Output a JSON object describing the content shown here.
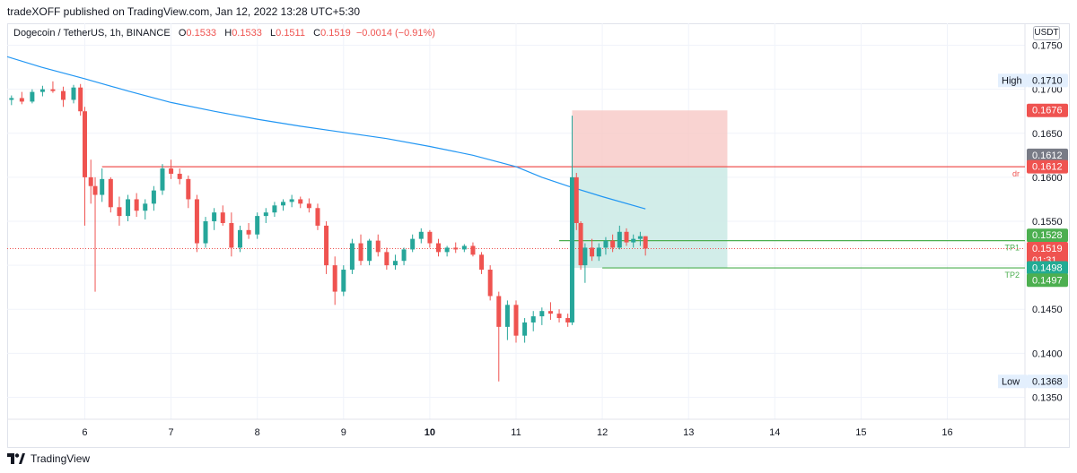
{
  "publish_line": "tradeXOFF published on TradingView.com, Jan 12, 2022 13:28 UTC+5:30",
  "legend": {
    "symbol": "Dogecoin / TetherUS, 1h, BINANCE",
    "open_label": "O",
    "open": "0.1533",
    "high_label": "H",
    "high": "0.1533",
    "low_label": "L",
    "low": "0.1511",
    "close_label": "C",
    "close": "0.1519",
    "change": "−0.0014 (−0.91%)"
  },
  "price_unit": "USDT",
  "footer": {
    "brand": "TradingView"
  },
  "colors": {
    "up": "#26a69a",
    "down": "#ef5350",
    "ma": "#2196f3",
    "resistance": "#ef5350",
    "tp": "#4caf50",
    "stop_zone": "#f7c8c6",
    "target_zone": "#cdebe7"
  },
  "chart_data": {
    "type": "candlestick",
    "x_ticks": [
      "6",
      "7",
      "8",
      "9",
      "10",
      "11",
      "12",
      "13",
      "14",
      "15",
      "16"
    ],
    "y_ticks": [
      "0.1350",
      "0.1400",
      "0.1450",
      "0.1500",
      "0.1550",
      "0.1600",
      "0.1650",
      "0.1700",
      "0.1750"
    ],
    "ylim": [
      0.1325,
      0.1775
    ],
    "xlim": [
      5.1,
      16.9
    ],
    "ohlc": [
      [
        5.15,
        0.1688,
        0.1693,
        0.1682,
        0.169
      ],
      [
        5.27,
        0.169,
        0.1697,
        0.1683,
        0.1686
      ],
      [
        5.39,
        0.1686,
        0.17,
        0.1684,
        0.1697
      ],
      [
        5.51,
        0.1697,
        0.1704,
        0.1692,
        0.17
      ],
      [
        5.63,
        0.17,
        0.1709,
        0.1696,
        0.1698
      ],
      [
        5.75,
        0.1698,
        0.1703,
        0.168,
        0.1688
      ],
      [
        5.87,
        0.1688,
        0.1705,
        0.1684,
        0.1702
      ],
      [
        5.95,
        0.1702,
        0.1706,
        0.167,
        0.1675
      ],
      [
        6.0,
        0.1675,
        0.168,
        0.1545,
        0.16
      ],
      [
        6.07,
        0.16,
        0.162,
        0.157,
        0.159
      ],
      [
        6.12,
        0.159,
        0.16,
        0.147,
        0.158
      ],
      [
        6.2,
        0.158,
        0.161,
        0.1572,
        0.1598
      ],
      [
        6.3,
        0.1598,
        0.16,
        0.156,
        0.1566
      ],
      [
        6.4,
        0.1566,
        0.1578,
        0.1545,
        0.1556
      ],
      [
        6.5,
        0.1556,
        0.158,
        0.155,
        0.1575
      ],
      [
        6.6,
        0.1575,
        0.1582,
        0.1555,
        0.1562
      ],
      [
        6.7,
        0.1562,
        0.1575,
        0.1552,
        0.157
      ],
      [
        6.8,
        0.157,
        0.159,
        0.1562,
        0.1585
      ],
      [
        6.9,
        0.1585,
        0.1615,
        0.158,
        0.161
      ],
      [
        7.0,
        0.161,
        0.162,
        0.1598,
        0.1604
      ],
      [
        7.1,
        0.1604,
        0.161,
        0.1592,
        0.1598
      ],
      [
        7.2,
        0.1598,
        0.1602,
        0.1565,
        0.1575
      ],
      [
        7.3,
        0.1575,
        0.158,
        0.1515,
        0.1525
      ],
      [
        7.4,
        0.1525,
        0.1555,
        0.152,
        0.155
      ],
      [
        7.5,
        0.155,
        0.1565,
        0.154,
        0.156
      ],
      [
        7.6,
        0.156,
        0.1568,
        0.1545,
        0.1548
      ],
      [
        7.7,
        0.1548,
        0.156,
        0.151,
        0.152
      ],
      [
        7.8,
        0.152,
        0.1545,
        0.1515,
        0.154
      ],
      [
        7.9,
        0.154,
        0.1548,
        0.153,
        0.1535
      ],
      [
        8.0,
        0.1535,
        0.156,
        0.153,
        0.1556
      ],
      [
        8.1,
        0.1556,
        0.1565,
        0.1548,
        0.156
      ],
      [
        8.2,
        0.156,
        0.1572,
        0.1555,
        0.1568
      ],
      [
        8.3,
        0.1568,
        0.1575,
        0.1562,
        0.1572
      ],
      [
        8.4,
        0.1572,
        0.158,
        0.1566,
        0.1575
      ],
      [
        8.5,
        0.1575,
        0.1578,
        0.1565,
        0.157
      ],
      [
        8.6,
        0.157,
        0.1576,
        0.156,
        0.1565
      ],
      [
        8.7,
        0.1565,
        0.157,
        0.154,
        0.1545
      ],
      [
        8.8,
        0.1545,
        0.155,
        0.149,
        0.15
      ],
      [
        8.9,
        0.15,
        0.151,
        0.1455,
        0.147
      ],
      [
        9.0,
        0.147,
        0.15,
        0.1465,
        0.1495
      ],
      [
        9.1,
        0.1495,
        0.153,
        0.149,
        0.1525
      ],
      [
        9.2,
        0.1525,
        0.1535,
        0.15,
        0.1505
      ],
      [
        9.3,
        0.1505,
        0.153,
        0.15,
        0.1528
      ],
      [
        9.4,
        0.1528,
        0.1535,
        0.151,
        0.1515
      ],
      [
        9.5,
        0.1515,
        0.152,
        0.1495,
        0.15
      ],
      [
        9.6,
        0.15,
        0.1512,
        0.1495,
        0.1505
      ],
      [
        9.7,
        0.1505,
        0.152,
        0.15,
        0.1518
      ],
      [
        9.8,
        0.1518,
        0.1535,
        0.1515,
        0.153
      ],
      [
        9.9,
        0.153,
        0.1542,
        0.1525,
        0.1538
      ],
      [
        10.0,
        0.1538,
        0.154,
        0.152,
        0.1525
      ],
      [
        10.1,
        0.1525,
        0.153,
        0.151,
        0.1515
      ],
      [
        10.2,
        0.1515,
        0.1522,
        0.151,
        0.152
      ],
      [
        10.3,
        0.152,
        0.1526,
        0.1514,
        0.1518
      ],
      [
        10.4,
        0.1518,
        0.1524,
        0.1515,
        0.1522
      ],
      [
        10.5,
        0.1522,
        0.1526,
        0.151,
        0.1512
      ],
      [
        10.6,
        0.1512,
        0.1515,
        0.149,
        0.1495
      ],
      [
        10.7,
        0.1495,
        0.15,
        0.146,
        0.1465
      ],
      [
        10.8,
        0.1465,
        0.147,
        0.1368,
        0.143
      ],
      [
        10.9,
        0.143,
        0.146,
        0.1415,
        0.1455
      ],
      [
        11.0,
        0.1455,
        0.146,
        0.1412,
        0.142
      ],
      [
        11.1,
        0.142,
        0.144,
        0.1412,
        0.1435
      ],
      [
        11.2,
        0.1435,
        0.1448,
        0.1425,
        0.1442
      ],
      [
        11.3,
        0.1442,
        0.1452,
        0.1432,
        0.1448
      ],
      [
        11.4,
        0.1448,
        0.1458,
        0.1438,
        0.1445
      ],
      [
        11.5,
        0.1445,
        0.145,
        0.1435,
        0.144
      ],
      [
        11.6,
        0.144,
        0.1445,
        0.143,
        0.1435
      ],
      [
        11.65,
        0.1435,
        0.167,
        0.1432,
        0.16
      ],
      [
        11.7,
        0.16,
        0.1605,
        0.154,
        0.1548
      ],
      [
        11.75,
        0.1548,
        0.155,
        0.1495,
        0.15
      ],
      [
        11.8,
        0.15,
        0.1525,
        0.148,
        0.152
      ],
      [
        11.88,
        0.152,
        0.153,
        0.1505,
        0.151
      ],
      [
        11.96,
        0.151,
        0.1525,
        0.1505,
        0.152
      ],
      [
        12.04,
        0.152,
        0.1532,
        0.1512,
        0.1528
      ],
      [
        12.12,
        0.1528,
        0.1535,
        0.1515,
        0.152
      ],
      [
        12.2,
        0.152,
        0.1545,
        0.1518,
        0.1538
      ],
      [
        12.28,
        0.1538,
        0.1542,
        0.1522,
        0.1526
      ],
      [
        12.36,
        0.1526,
        0.1535,
        0.152,
        0.153
      ],
      [
        12.44,
        0.153,
        0.1538,
        0.1522,
        0.1533
      ],
      [
        12.5,
        0.1533,
        0.1533,
        0.1511,
        0.1519
      ]
    ],
    "moving_average": [
      [
        5.1,
        0.1737
      ],
      [
        5.5,
        0.1725
      ],
      [
        6.0,
        0.1712
      ],
      [
        6.5,
        0.1698
      ],
      [
        7.0,
        0.1685
      ],
      [
        7.5,
        0.1675
      ],
      [
        8.0,
        0.1666
      ],
      [
        8.5,
        0.1658
      ],
      [
        9.0,
        0.1651
      ],
      [
        9.5,
        0.1644
      ],
      [
        10.0,
        0.1635
      ],
      [
        10.5,
        0.1625
      ],
      [
        11.0,
        0.1612
      ],
      [
        11.3,
        0.16
      ],
      [
        11.6,
        0.159
      ],
      [
        12.0,
        0.1578
      ],
      [
        12.5,
        0.1564
      ]
    ],
    "resistance": {
      "price": 0.1612,
      "label": "dr",
      "x_start": 6.2
    },
    "tp1": {
      "price": 0.1528,
      "label": "TP1",
      "x_start": 11.5
    },
    "tp2": {
      "price": 0.1497,
      "label": "TP2",
      "x_start": 12.0
    },
    "position": {
      "x_start": 11.65,
      "x_end": 13.45,
      "stop": 0.1676,
      "entry": 0.1612,
      "target": 0.1497
    },
    "last_price": 0.1519,
    "price_labels": [
      {
        "text": "0.1710",
        "price": 0.171,
        "tag": "High",
        "bg": "#e3effd",
        "fg": "#131722"
      },
      {
        "text": "0.1676",
        "price": 0.1676,
        "bg": "#ef5350",
        "fg": "#ffffff"
      },
      {
        "text": "0.1612",
        "price": 0.1625,
        "bg": "#787b86",
        "fg": "#ffffff"
      },
      {
        "text": "0.1612",
        "price": 0.1612,
        "bg": "#ef5350",
        "fg": "#ffffff"
      },
      {
        "text": "0.1528",
        "price": 0.1534,
        "bg": "#4caf50",
        "fg": "#ffffff"
      },
      {
        "text": "0.1519",
        "price": 0.1519,
        "sub": "01:31",
        "bg": "#ef5350",
        "fg": "#ffffff"
      },
      {
        "text": "0.1498",
        "price": 0.1497,
        "bg": "#22ab94",
        "fg": "#ffffff"
      },
      {
        "text": "0.1497",
        "price": 0.1483,
        "bg": "#4caf50",
        "fg": "#ffffff"
      },
      {
        "text": "0.1368",
        "price": 0.1368,
        "tag": "Low",
        "bg": "#e3effd",
        "fg": "#131722"
      }
    ]
  }
}
